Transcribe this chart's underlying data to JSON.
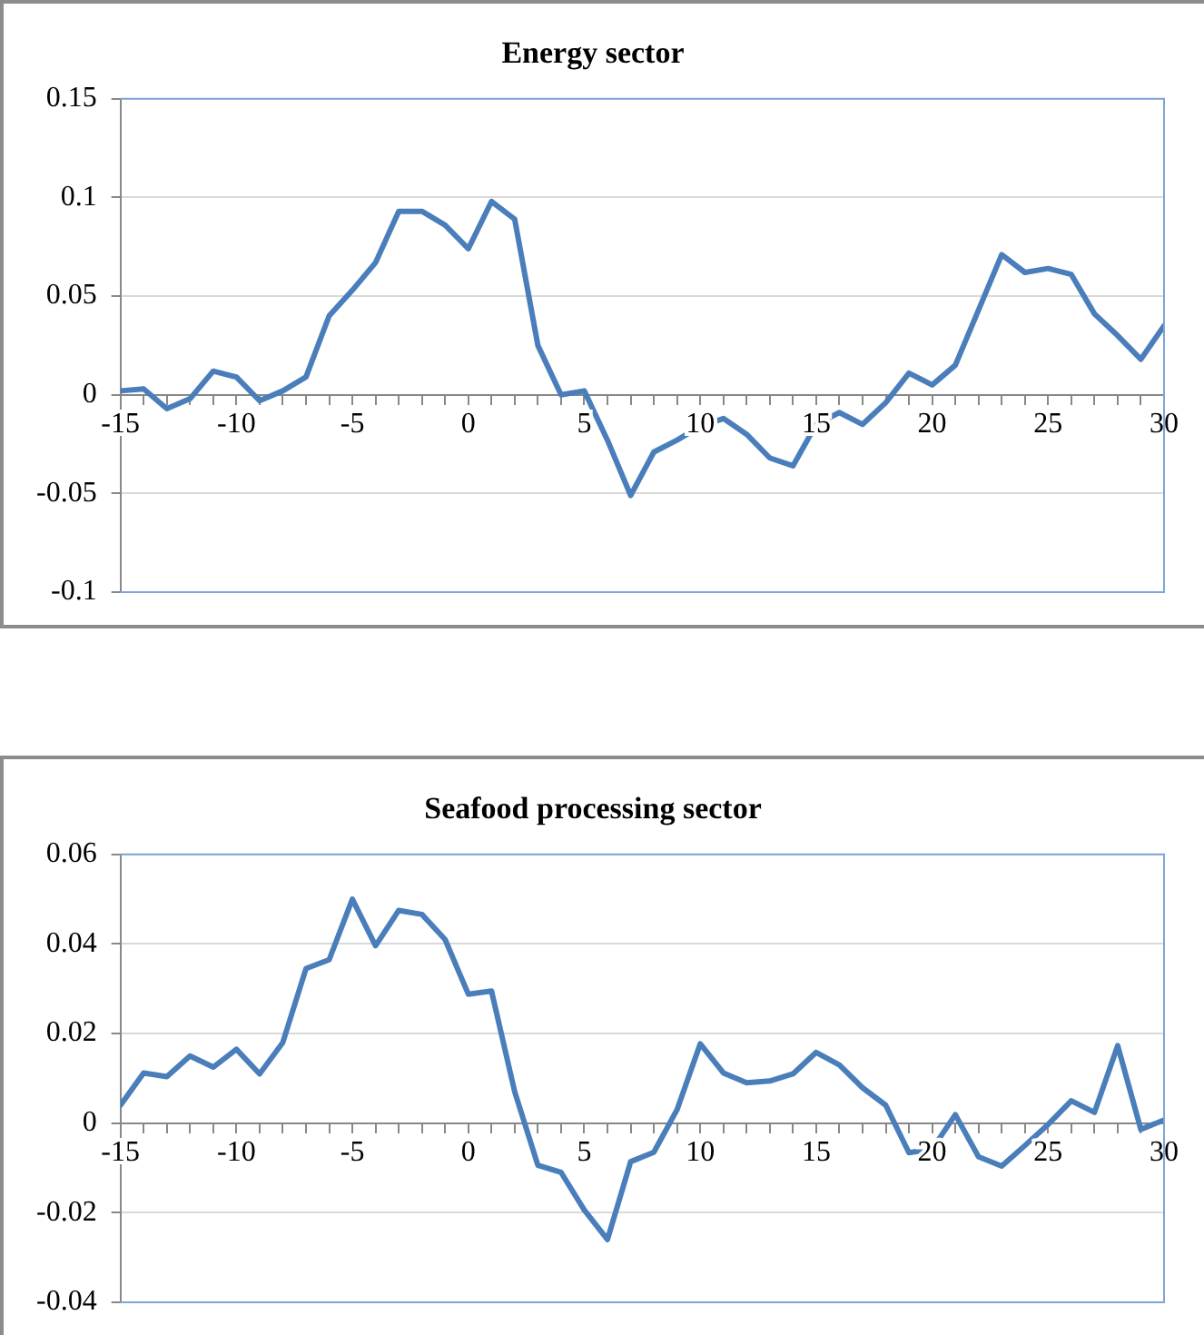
{
  "chart_data": [
    {
      "type": "line",
      "title": "Energy sector",
      "x": [
        -15,
        -14,
        -13,
        -12,
        -11,
        -10,
        -9,
        -8,
        -7,
        -6,
        -5,
        -4,
        -3,
        -2,
        -1,
        0,
        1,
        2,
        3,
        4,
        5,
        6,
        7,
        8,
        9,
        10,
        11,
        12,
        13,
        14,
        15,
        16,
        17,
        18,
        19,
        20,
        21,
        22,
        23,
        24,
        25,
        26,
        27,
        28,
        29,
        30
      ],
      "series": [
        {
          "color": "#4a7ebb",
          "values": [
            0.002,
            0.003,
            -0.007,
            -0.002,
            0.012,
            0.009,
            -0.003,
            0.002,
            0.009,
            0.04,
            0.053,
            0.067,
            0.093,
            0.093,
            0.086,
            0.074,
            0.098,
            0.089,
            0.025,
            0,
            0.002,
            -0.023,
            -0.051,
            -0.029,
            -0.023,
            -0.016,
            -0.012,
            -0.02,
            -0.032,
            -0.036,
            -0.015,
            -0.009,
            -0.015,
            -0.004,
            0.011,
            0.005,
            0.015,
            0.043,
            0.071,
            0.062,
            0.064,
            0.061,
            0.041,
            0.03,
            0.018,
            0.035
          ]
        }
      ],
      "xlim": [
        -15,
        30
      ],
      "xticks": [
        -15,
        {
          "value": -14,
          "label": null
        },
        {
          "value": -13,
          "label": null
        },
        {
          "value": -12,
          "label": null
        },
        {
          "value": -11,
          "label": null
        },
        -10,
        {
          "value": -9,
          "label": null
        },
        {
          "value": -8,
          "label": null
        },
        {
          "value": -7,
          "label": null
        },
        {
          "value": -6,
          "label": null
        },
        -5,
        {
          "value": -4,
          "label": null
        },
        {
          "value": -3,
          "label": null
        },
        {
          "value": -2,
          "label": null
        },
        {
          "value": -1,
          "label": null
        },
        0,
        {
          "value": 1,
          "label": null
        },
        {
          "value": 2,
          "label": null
        },
        {
          "value": 3,
          "label": null
        },
        {
          "value": 4,
          "label": null
        },
        5,
        {
          "value": 6,
          "label": null
        },
        {
          "value": 7,
          "label": null
        },
        {
          "value": 8,
          "label": null
        },
        {
          "value": 9,
          "label": null
        },
        10,
        {
          "value": 11,
          "label": null
        },
        {
          "value": 12,
          "label": null
        },
        {
          "value": 13,
          "label": null
        },
        {
          "value": 14,
          "label": null
        },
        15,
        {
          "value": 16,
          "label": null
        },
        {
          "value": 17,
          "label": null
        },
        {
          "value": 18,
          "label": null
        },
        {
          "value": 19,
          "label": null
        },
        20,
        {
          "value": 21,
          "label": null
        },
        {
          "value": 22,
          "label": null
        },
        {
          "value": 23,
          "label": null
        },
        {
          "value": 24,
          "label": null
        },
        25,
        {
          "value": 26,
          "label": null
        },
        {
          "value": 27,
          "label": null
        },
        {
          "value": 28,
          "label": null
        },
        {
          "value": 29,
          "label": null
        },
        30
      ],
      "ylim": [
        -0.1,
        0.15
      ],
      "yticks": [
        -0.1,
        -0.05,
        0,
        0.05,
        0.1,
        0.15
      ],
      "grid": "y",
      "legend": false,
      "marker": "none",
      "line_style": "solid"
    },
    {
      "type": "line",
      "title": "Seafood processing sector",
      "x": [
        -15,
        -14,
        -13,
        -12,
        -11,
        -10,
        -9,
        -8,
        -7,
        -6,
        -5,
        -4,
        -3,
        -2,
        -1,
        0,
        1,
        2,
        3,
        4,
        5,
        6,
        7,
        8,
        9,
        10,
        11,
        12,
        13,
        14,
        15,
        16,
        17,
        18,
        19,
        20,
        21,
        22,
        23,
        24,
        25,
        26,
        27,
        28,
        29,
        30
      ],
      "series": [
        {
          "color": "#4a7ebb",
          "values": [
            0.004,
            0.0112,
            0.0104,
            0.015,
            0.0125,
            0.0165,
            0.011,
            0.018,
            0.0345,
            0.0365,
            0.05,
            0.0396,
            0.0475,
            0.0466,
            0.041,
            0.0288,
            0.0295,
            0.007,
            -0.0094,
            -0.011,
            -0.0194,
            -0.026,
            -0.0086,
            -0.0065,
            0.003,
            0.0177,
            0.0112,
            0.009,
            0.0094,
            0.011,
            0.0158,
            0.013,
            0.0079,
            0.004,
            -0.0066,
            -0.0058,
            0.0019,
            -0.0075,
            -0.0096,
            -0.005,
            -0.0003,
            0.005,
            0.0024,
            0.0173,
            -0.0014,
            0.0007
          ]
        }
      ],
      "xlim": [
        -15,
        30
      ],
      "xticks": [
        -15,
        {
          "value": -14,
          "label": null
        },
        {
          "value": -13,
          "label": null
        },
        {
          "value": -12,
          "label": null
        },
        {
          "value": -11,
          "label": null
        },
        -10,
        {
          "value": -9,
          "label": null
        },
        {
          "value": -8,
          "label": null
        },
        {
          "value": -7,
          "label": null
        },
        {
          "value": -6,
          "label": null
        },
        -5,
        {
          "value": -4,
          "label": null
        },
        {
          "value": -3,
          "label": null
        },
        {
          "value": -2,
          "label": null
        },
        {
          "value": -1,
          "label": null
        },
        0,
        {
          "value": 1,
          "label": null
        },
        {
          "value": 2,
          "label": null
        },
        {
          "value": 3,
          "label": null
        },
        {
          "value": 4,
          "label": null
        },
        5,
        {
          "value": 6,
          "label": null
        },
        {
          "value": 7,
          "label": null
        },
        {
          "value": 8,
          "label": null
        },
        {
          "value": 9,
          "label": null
        },
        10,
        {
          "value": 11,
          "label": null
        },
        {
          "value": 12,
          "label": null
        },
        {
          "value": 13,
          "label": null
        },
        {
          "value": 14,
          "label": null
        },
        15,
        {
          "value": 16,
          "label": null
        },
        {
          "value": 17,
          "label": null
        },
        {
          "value": 18,
          "label": null
        },
        {
          "value": 19,
          "label": null
        },
        20,
        {
          "value": 21,
          "label": null
        },
        {
          "value": 22,
          "label": null
        },
        {
          "value": 23,
          "label": null
        },
        {
          "value": 24,
          "label": null
        },
        25,
        {
          "value": 26,
          "label": null
        },
        {
          "value": 27,
          "label": null
        },
        {
          "value": 28,
          "label": null
        },
        {
          "value": 29,
          "label": null
        },
        30
      ],
      "ylim": [
        -0.04,
        0.06
      ],
      "yticks": [
        -0.04,
        -0.02,
        0,
        0.02,
        0.04,
        0.06
      ],
      "grid": "y",
      "legend": false,
      "marker": "none",
      "line_style": "solid"
    }
  ]
}
